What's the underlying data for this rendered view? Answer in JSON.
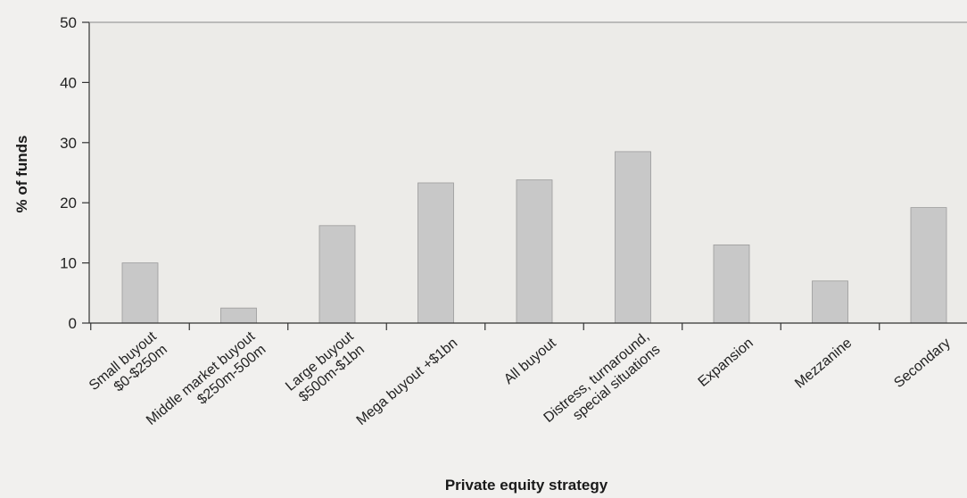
{
  "chart_data": {
    "type": "bar",
    "title": "",
    "xlabel": "Private equity strategy",
    "ylabel": "% of funds",
    "ylim": [
      0,
      50
    ],
    "yticks": [
      0,
      10,
      20,
      30,
      40,
      50
    ],
    "grid": false,
    "legend": "none",
    "bar_color": "#c8c8c8",
    "categories": [
      [
        "Small buyout",
        "$0-$250m"
      ],
      [
        "Middle market buyout",
        "$250m-500m"
      ],
      [
        "Large buyout",
        "$500m-$1bn"
      ],
      [
        "Mega buyout +$1bn"
      ],
      [
        "All buyout"
      ],
      [
        "Distress, turnaround,",
        "special situations"
      ],
      [
        "Expansion"
      ],
      [
        "Mezzanine"
      ],
      [
        "Secondary"
      ]
    ],
    "values": [
      10,
      2.5,
      16.2,
      23.3,
      23.8,
      28.5,
      13,
      7,
      19.2
    ]
  }
}
